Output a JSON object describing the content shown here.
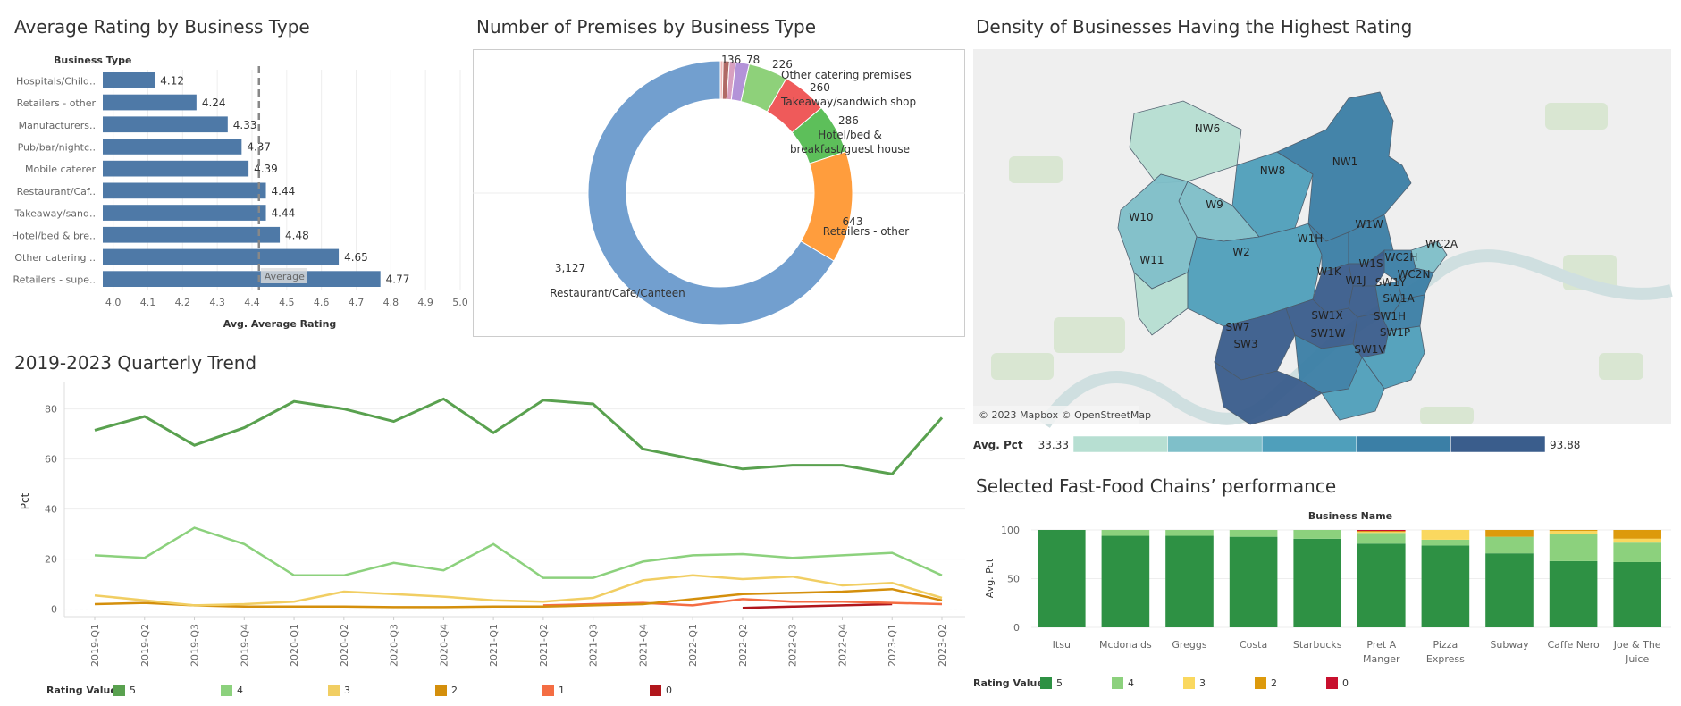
{
  "titles": {
    "avg_rating": "Average Rating by Business Type",
    "premises": "Number of Premises by Business Type",
    "density": "Density of Businesses Having the Highest Rating",
    "trend": "2019-2023 Quarterly Trend",
    "chains": "Selected Fast-Food Chains’ performance"
  },
  "chart_data": [
    {
      "type": "bar",
      "orientation": "horizontal",
      "title": "Average Rating by Business Type",
      "category_header": "Business Type",
      "xlabel": "Avg. Average Rating",
      "categories": [
        "Hospitals/Child..",
        "Retailers - other",
        "Manufacturers..",
        "Pub/bar/nightc..",
        "Mobile caterer",
        "Restaurant/Caf..",
        "Takeaway/sand..",
        "Hotel/bed & bre..",
        "Other catering ..",
        "Retailers - supe.."
      ],
      "values": [
        4.12,
        4.24,
        4.33,
        4.37,
        4.39,
        4.44,
        4.44,
        4.48,
        4.65,
        4.77
      ],
      "value_labels": [
        "4.12",
        "4.24",
        "4.33",
        "4.37",
        "4.39",
        "4.44",
        "4.44",
        "4.48",
        "4.65",
        "4.77"
      ],
      "xticks": [
        "4.0",
        "4.1",
        "4.2",
        "4.3",
        "4.4",
        "4.5",
        "4.6",
        "4.7",
        "4.8",
        "4.9",
        "5.0"
      ],
      "xlim": [
        3.97,
        5.0
      ],
      "reference_line": {
        "label": "Average",
        "value": 4.42
      },
      "color": "#4e79a7"
    },
    {
      "type": "pie",
      "donut": true,
      "title": "Number of Premises by Business Type",
      "slices": [
        {
          "label": "Restaurant/Cafe/Canteen",
          "value": 3127,
          "value_label": "3,127",
          "color": "#729fcf"
        },
        {
          "label": "Retailers - other",
          "value": 643,
          "value_label": "643",
          "color": "#ff9d3d"
        },
        {
          "label": "Hotel/bed & breakfast/guest house",
          "value": 286,
          "value_label": "286",
          "color": "#5dbf5a"
        },
        {
          "label": "Takeaway/sandwich shop",
          "value": 260,
          "value_label": "260",
          "color": "#ef5a5a"
        },
        {
          "label": "Other catering premises",
          "value": 226,
          "value_label": "226",
          "color": "#8ed17a"
        },
        {
          "label": "",
          "value": 78,
          "value_label": "78",
          "color": "#b393d8"
        },
        {
          "label": "",
          "value": 36,
          "value_label": "36",
          "color": "#d8a0c0"
        },
        {
          "label": "",
          "value": 36,
          "value_label": "",
          "color": "#b06a66"
        },
        {
          "label": "",
          "value": 16,
          "value_label": "",
          "color": "#f0b8b8"
        }
      ],
      "extra_label": "1"
    },
    {
      "type": "heatmap",
      "subtype": "choropleth-map",
      "title": "Density of Businesses Having the Highest Rating",
      "legend_label": "Avg. Pct",
      "range": [
        33.33,
        93.88
      ],
      "range_labels": [
        "33.33",
        "93.88"
      ],
      "colors": [
        "#b7dfd2",
        "#7fbfc9",
        "#4f9fbb",
        "#3b7fa6",
        "#3a5d8c"
      ],
      "attribution": "© 2023 Mapbox © OpenStreetMap",
      "regions": [
        {
          "name": "NW6",
          "value": 36
        },
        {
          "name": "NW8",
          "value": 58
        },
        {
          "name": "NW1",
          "value": 72
        },
        {
          "name": "W9",
          "value": 55
        },
        {
          "name": "W10",
          "value": 55
        },
        {
          "name": "W11",
          "value": 36
        },
        {
          "name": "W2",
          "value": 58
        },
        {
          "name": "W1H",
          "value": 70
        },
        {
          "name": "W1W",
          "value": 80
        },
        {
          "name": "WC2A",
          "value": 55
        },
        {
          "name": "WC2H",
          "value": 70
        },
        {
          "name": "W1S",
          "value": 82
        },
        {
          "name": "WC2N",
          "value": 72
        },
        {
          "name": "W1K",
          "value": 84
        },
        {
          "name": "W1J",
          "value": 82
        },
        {
          "name": "SW1Y",
          "value": 78
        },
        {
          "name": "SW1A",
          "value": 72
        },
        {
          "name": "SW1X",
          "value": 84
        },
        {
          "name": "SW1H",
          "value": 86
        },
        {
          "name": "SW7",
          "value": 82
        },
        {
          "name": "SW1W",
          "value": 72
        },
        {
          "name": "SW1P",
          "value": 66
        },
        {
          "name": "SW3",
          "value": 93
        },
        {
          "name": "SW1V",
          "value": 68
        }
      ]
    },
    {
      "type": "line",
      "title": "2019-2023 Quarterly Trend",
      "ylabel": "Pct",
      "legend_title": "Rating Value",
      "x": [
        "2019-Q1",
        "2019-Q2",
        "2019-Q3",
        "2019-Q4",
        "2020-Q1",
        "2020-Q2",
        "2020-Q3",
        "2020-Q4",
        "2021-Q1",
        "2021-Q2",
        "2021-Q3",
        "2021-Q4",
        "2022-Q1",
        "2022-Q2",
        "2022-Q3",
        "2022-Q4",
        "2023-Q1",
        "2023-Q2"
      ],
      "yticks": [
        "0",
        "20",
        "40",
        "60",
        "80"
      ],
      "ylim": [
        -3,
        87
      ],
      "series": [
        {
          "name": "5",
          "color": "#59a14f",
          "values": [
            71.5,
            77,
            65.5,
            72.5,
            83,
            80,
            75,
            84,
            70.5,
            83.5,
            82,
            64,
            60,
            56,
            57.5,
            57.5,
            54,
            76.5
          ]
        },
        {
          "name": "4",
          "color": "#8cd17d",
          "values": [
            21.5,
            20.5,
            32.5,
            26,
            13.5,
            13.5,
            18.5,
            15.5,
            26,
            12.5,
            12.5,
            19,
            21.5,
            22,
            20.5,
            21.5,
            22.5,
            13.5
          ]
        },
        {
          "name": "3",
          "color": "#f1ce63",
          "values": [
            5.5,
            3.5,
            1.5,
            2,
            3,
            7,
            6,
            5,
            3.5,
            3,
            4.5,
            11.5,
            13.5,
            12,
            13,
            9.5,
            10.5,
            4.5
          ]
        },
        {
          "name": "2",
          "color": "#d48f0c",
          "values": [
            2,
            2.5,
            1.5,
            1,
            1,
            1,
            0.8,
            0.8,
            1,
            1,
            1.5,
            2,
            4,
            6,
            6.5,
            7,
            8,
            3.5
          ]
        },
        {
          "name": "1",
          "color": "#f46d43",
          "values": [
            null,
            null,
            null,
            null,
            null,
            null,
            null,
            null,
            null,
            1.5,
            2,
            2.5,
            1.5,
            4,
            3,
            3,
            2.5,
            2
          ]
        },
        {
          "name": "0",
          "color": "#b1161c",
          "values": [
            null,
            null,
            null,
            null,
            null,
            null,
            null,
            null,
            null,
            null,
            null,
            null,
            null,
            0.5,
            1,
            1.5,
            2,
            null
          ]
        }
      ]
    },
    {
      "type": "bar",
      "stacked": true,
      "title": "Selected Fast-Food Chains’ performance",
      "category_header": "Business Name",
      "ylabel": "Avg. Pct",
      "yticks": [
        "0",
        "50",
        "100"
      ],
      "ylim": [
        0,
        100
      ],
      "legend_title": "Rating Value",
      "categories": [
        [
          "Itsu"
        ],
        [
          "Mcdonalds"
        ],
        [
          "Greggs"
        ],
        [
          "Costa"
        ],
        [
          "Starbucks"
        ],
        [
          "Pret A",
          "Manger"
        ],
        [
          "Pizza",
          "Express"
        ],
        [
          "Subway"
        ],
        [
          "Caffe Nero"
        ],
        [
          "Joe & The",
          "Juice"
        ]
      ],
      "series": [
        {
          "name": "5",
          "color": "#2e9144",
          "values": [
            100,
            94,
            94,
            93,
            91,
            86,
            84,
            76,
            68,
            67
          ]
        },
        {
          "name": "4",
          "color": "#8cd17d",
          "values": [
            0,
            6,
            6,
            7,
            9,
            11,
            6,
            17,
            28,
            20
          ]
        },
        {
          "name": "3",
          "color": "#fad85f",
          "values": [
            0,
            0,
            0,
            0,
            0,
            1,
            10,
            0,
            3,
            4
          ]
        },
        {
          "name": "2",
          "color": "#dd9a0c",
          "values": [
            0,
            0,
            0,
            0,
            0,
            1,
            0,
            7,
            1,
            9
          ]
        },
        {
          "name": "0",
          "color": "#c8102e",
          "values": [
            0,
            0,
            0,
            0,
            0,
            1,
            0,
            0,
            0,
            0
          ]
        }
      ]
    }
  ]
}
